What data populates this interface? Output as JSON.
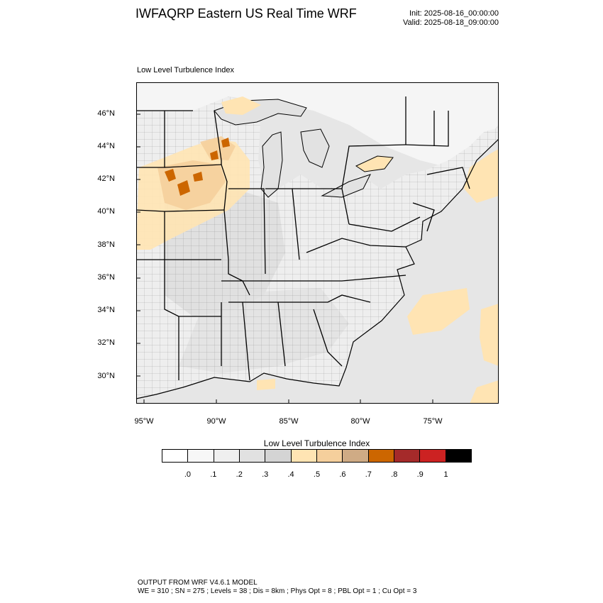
{
  "header": {
    "title": "IWFAQRP Eastern US Real Time WRF",
    "init": "Init: 2025-08-16_00:00:00",
    "valid": "Valid: 2025-08-18_09:00:00"
  },
  "map": {
    "subtitle": "Low Level Turbulence Index",
    "lat_labels": [
      "46°N",
      "44°N",
      "42°N",
      "40°N",
      "38°N",
      "36°N",
      "34°N",
      "32°N",
      "30°N"
    ],
    "lon_labels": [
      "95°W",
      "90°W",
      "85°W",
      "80°W",
      "75°W"
    ],
    "land_base_color": "#f2f2f2",
    "water_color": "#e6e6e6"
  },
  "colorbar": {
    "title": "Low Level Turbulence Index",
    "colors": [
      "#ffffff",
      "#f7f7f7",
      "#efefef",
      "#e1e1e1",
      "#d4d4d4",
      "#ffe4b3",
      "#f5cf9c",
      "#cfab85",
      "#cc6600",
      "#a52a2a",
      "#cc2222",
      "#000000"
    ],
    "labels": [
      ".0",
      ".1",
      ".2",
      ".3",
      ".4",
      ".5",
      ".6",
      ".7",
      ".8",
      ".9",
      "1"
    ]
  },
  "footer": {
    "line1": "OUTPUT FROM WRF V4.6.1 MODEL",
    "line2": "WE = 310 ; SN = 275 ; Levels = 38 ; Dis = 8km ; Phys Opt = 8 ; PBL Opt = 1 ; Cu Opt = 3"
  }
}
